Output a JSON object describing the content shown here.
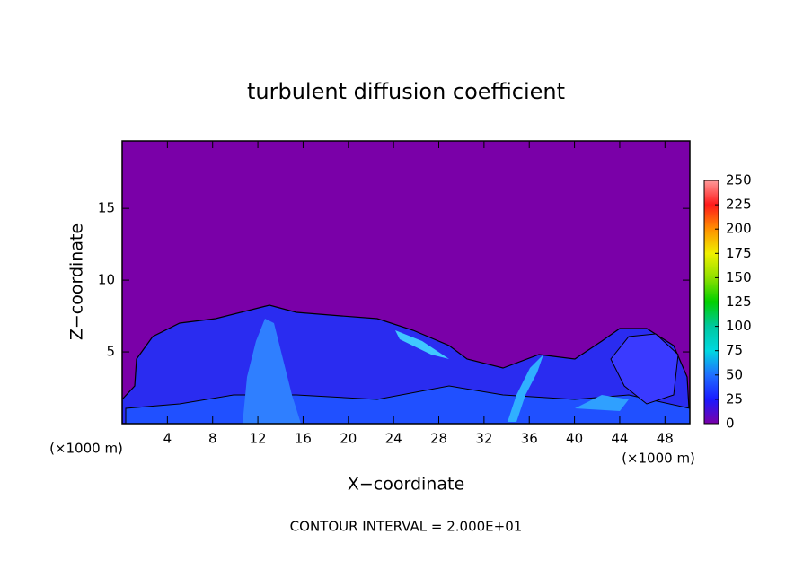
{
  "chart_data": {
    "type": "contour",
    "title": "turbulent diffusion coefficient",
    "x_label": "X−coordinate",
    "y_label": "Z−coordinate",
    "x_unit_label": "(×1000 m)",
    "footer": "CONTOUR INTERVAL = 2.000E+01",
    "xlim": [
      0,
      50.2
    ],
    "xticks": [
      4,
      8,
      12,
      16,
      20,
      24,
      28,
      32,
      36,
      40,
      44,
      48
    ],
    "ylim": [
      0,
      19.7
    ],
    "yticks": [
      5,
      10,
      15
    ],
    "colorbar": {
      "lim": [
        0,
        250
      ],
      "ticks": [
        0,
        25,
        50,
        75,
        100,
        125,
        150,
        175,
        200,
        225,
        250
      ],
      "colors": [
        "#7a00a8",
        "#1a1aff",
        "#1f6fff",
        "#00d8e0",
        "#00c8a0",
        "#00d000",
        "#90e000",
        "#f0f000",
        "#ff9000",
        "#ff1a1a",
        "#ff9a9a"
      ]
    }
  }
}
